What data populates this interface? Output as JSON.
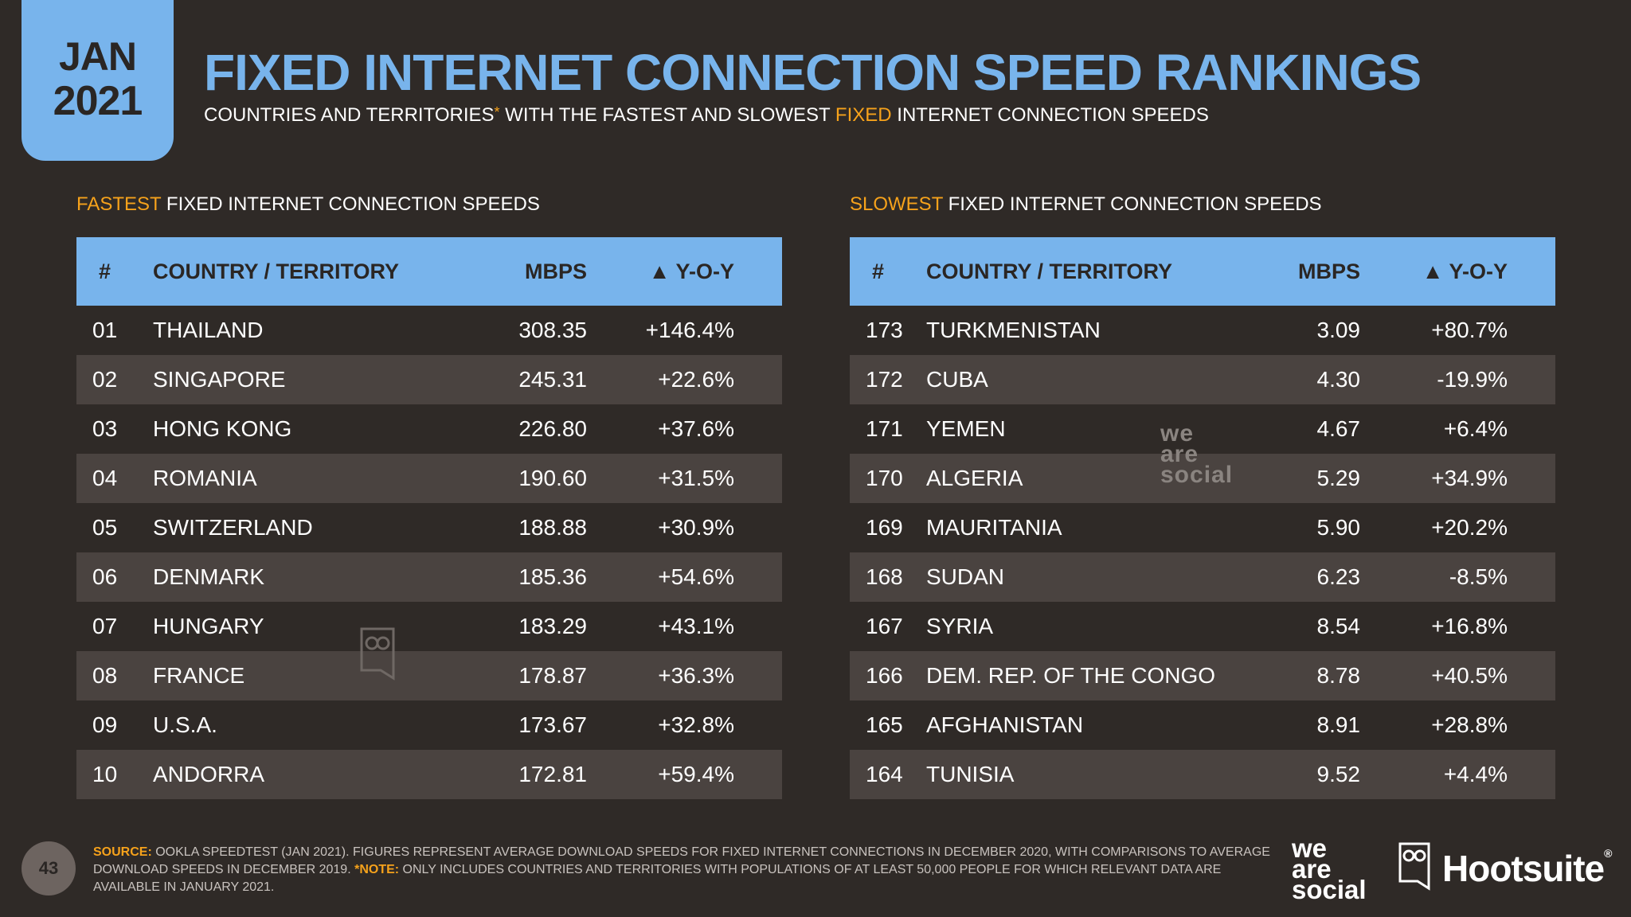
{
  "badge": {
    "month": "JAN",
    "year": "2021"
  },
  "title": "FIXED INTERNET CONNECTION SPEED RANKINGS",
  "subtitle": {
    "part1": "COUNTRIES AND TERRITORIES",
    "asterisk": "*",
    "part2": " WITH THE FASTEST AND SLOWEST ",
    "highlight": "FIXED",
    "part3": " INTERNET CONNECTION SPEEDS"
  },
  "columns": {
    "rank": "#",
    "country": "COUNTRY / TERRITORY",
    "mbps": "MBPS",
    "yoy": "▲ Y-O-Y"
  },
  "fastest": {
    "title_highlight": "FASTEST",
    "title_rest": " FIXED INTERNET CONNECTION SPEEDS",
    "rows": [
      {
        "rank": "01",
        "country": "THAILAND",
        "mbps": "308.35",
        "yoy": "+146.4%"
      },
      {
        "rank": "02",
        "country": "SINGAPORE",
        "mbps": "245.31",
        "yoy": "+22.6%"
      },
      {
        "rank": "03",
        "country": "HONG KONG",
        "mbps": "226.80",
        "yoy": "+37.6%"
      },
      {
        "rank": "04",
        "country": "ROMANIA",
        "mbps": "190.60",
        "yoy": "+31.5%"
      },
      {
        "rank": "05",
        "country": "SWITZERLAND",
        "mbps": "188.88",
        "yoy": "+30.9%"
      },
      {
        "rank": "06",
        "country": "DENMARK",
        "mbps": "185.36",
        "yoy": "+54.6%"
      },
      {
        "rank": "07",
        "country": "HUNGARY",
        "mbps": "183.29",
        "yoy": "+43.1%"
      },
      {
        "rank": "08",
        "country": "FRANCE",
        "mbps": "178.87",
        "yoy": "+36.3%"
      },
      {
        "rank": "09",
        "country": "U.S.A.",
        "mbps": "173.67",
        "yoy": "+32.8%"
      },
      {
        "rank": "10",
        "country": "ANDORRA",
        "mbps": "172.81",
        "yoy": "+59.4%"
      }
    ]
  },
  "slowest": {
    "title_highlight": "SLOWEST",
    "title_rest": " FIXED INTERNET CONNECTION SPEEDS",
    "rows": [
      {
        "rank": "173",
        "country": "TURKMENISTAN",
        "mbps": "3.09",
        "yoy": "+80.7%"
      },
      {
        "rank": "172",
        "country": "CUBA",
        "mbps": "4.30",
        "yoy": "-19.9%"
      },
      {
        "rank": "171",
        "country": "YEMEN",
        "mbps": "4.67",
        "yoy": "+6.4%"
      },
      {
        "rank": "170",
        "country": "ALGERIA",
        "mbps": "5.29",
        "yoy": "+34.9%"
      },
      {
        "rank": "169",
        "country": "MAURITANIA",
        "mbps": "5.90",
        "yoy": "+20.2%"
      },
      {
        "rank": "168",
        "country": "SUDAN",
        "mbps": "6.23",
        "yoy": "-8.5%"
      },
      {
        "rank": "167",
        "country": "SYRIA",
        "mbps": "8.54",
        "yoy": "+16.8%"
      },
      {
        "rank": "166",
        "country": "DEM. REP. OF THE CONGO",
        "mbps": "8.78",
        "yoy": "+40.5%"
      },
      {
        "rank": "165",
        "country": "AFGHANISTAN",
        "mbps": "8.91",
        "yoy": "+28.8%"
      },
      {
        "rank": "164",
        "country": "TUNISIA",
        "mbps": "9.52",
        "yoy": "+4.4%"
      }
    ]
  },
  "watermark": {
    "l1": "we",
    "l2": "are",
    "l3": "social"
  },
  "footer": {
    "page_number": "43",
    "source_label": "SOURCE:",
    "source_text": " OOKLA SPEEDTEST (JAN 2021). FIGURES REPRESENT AVERAGE DOWNLOAD SPEEDS FOR FIXED INTERNET CONNECTIONS IN DECEMBER 2020, WITH COMPARISONS TO AVERAGE DOWNLOAD SPEEDS IN DECEMBER 2019. ",
    "note_label": "*NOTE:",
    "note_text": " ONLY INCLUDES COUNTRIES AND TERRITORIES WITH POPULATIONS OF AT LEAST 50,000 PEOPLE FOR WHICH RELEVANT DATA ARE AVAILABLE IN JANUARY 2021.",
    "was_logo": {
      "l1": "we",
      "l2": "are",
      "l3": "social"
    },
    "hootsuite": "Hootsuite",
    "reg": "®"
  },
  "colors": {
    "accent_blue": "#78b4ec",
    "accent_orange": "#f6a21b",
    "background": "#2f2a27",
    "row_alt": "#4a4340"
  },
  "icons": {
    "owl": "hootsuite-owl-icon"
  }
}
